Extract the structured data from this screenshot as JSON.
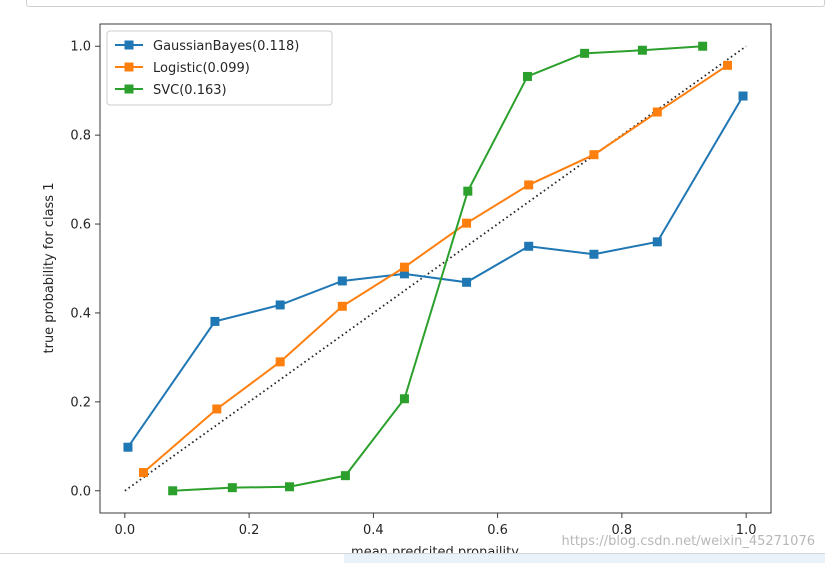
{
  "chart_data": {
    "type": "line",
    "xlabel": "mean predcited pronaility",
    "ylabel": "true probability for class 1",
    "xlim": [
      -0.04,
      1.04
    ],
    "ylim": [
      -0.05,
      1.05
    ],
    "xticks": [
      "0.0",
      "0.2",
      "0.4",
      "0.6",
      "0.8",
      "1.0"
    ],
    "yticks": [
      "0.0",
      "0.2",
      "0.4",
      "0.6",
      "0.8",
      "1.0"
    ],
    "legend_position": "top-left",
    "reference_line": {
      "x": [
        0,
        1
      ],
      "y": [
        0,
        1
      ],
      "style": "dotted",
      "color": "#262626"
    },
    "series": [
      {
        "name": "GaussianBayes(0.118)",
        "color": "#1f77b4",
        "x": [
          0.005,
          0.145,
          0.25,
          0.35,
          0.45,
          0.55,
          0.65,
          0.755,
          0.857,
          0.995
        ],
        "y": [
          0.098,
          0.381,
          0.418,
          0.472,
          0.488,
          0.469,
          0.55,
          0.532,
          0.56,
          0.888
        ]
      },
      {
        "name": "Logistic(0.099)",
        "color": "#ff7f0e",
        "x": [
          0.03,
          0.148,
          0.25,
          0.35,
          0.45,
          0.55,
          0.65,
          0.755,
          0.857,
          0.97
        ],
        "y": [
          0.041,
          0.184,
          0.29,
          0.415,
          0.503,
          0.602,
          0.688,
          0.756,
          0.852,
          0.957
        ]
      },
      {
        "name": "SVC(0.163)",
        "color": "#2ca02c",
        "x": [
          0.077,
          0.173,
          0.265,
          0.355,
          0.45,
          0.552,
          0.648,
          0.74,
          0.833,
          0.93
        ],
        "y": [
          0.0,
          0.007,
          0.009,
          0.034,
          0.207,
          0.674,
          0.932,
          0.984,
          0.991,
          1.0
        ]
      }
    ]
  },
  "watermark": "https://blog.csdn.net/weixin_45271076"
}
